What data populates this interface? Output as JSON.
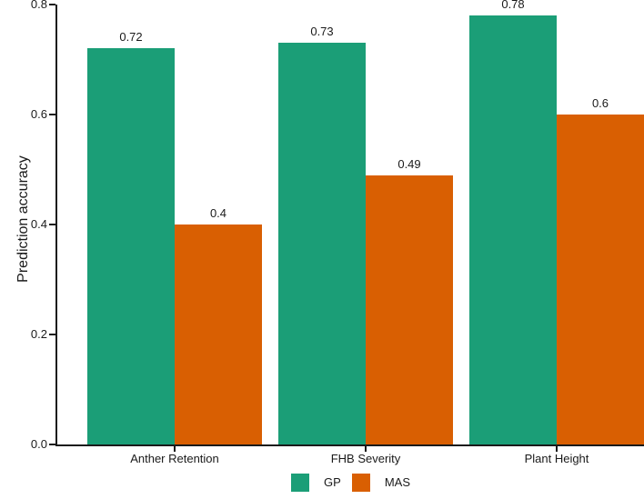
{
  "chart_data": {
    "type": "bar",
    "bar_grouping": "dodged",
    "title": "",
    "xlabel": "",
    "ylabel": "Prediction accuracy",
    "categories": [
      "Anther Retention",
      "FHB Severity",
      "Plant Height"
    ],
    "series": [
      {
        "name": "GP",
        "color": "#1b9e77",
        "values": [
          0.72,
          0.73,
          0.78
        ],
        "labels": [
          "0.72",
          "0.73",
          "0.78"
        ]
      },
      {
        "name": "MAS",
        "color": "#d95f02",
        "values": [
          0.4,
          0.49,
          0.6
        ],
        "labels": [
          "0.4",
          "0.49",
          "0.6"
        ]
      }
    ],
    "ylim": [
      0,
      0.8
    ],
    "yticks": [
      "0.0",
      "0.2",
      "0.4",
      "0.6",
      "0.8"
    ],
    "legend_position": "bottom",
    "grid": false,
    "axis_color": "#1a1a1a",
    "text_color": "#1a1a1a",
    "background_color": "#ffffff"
  }
}
